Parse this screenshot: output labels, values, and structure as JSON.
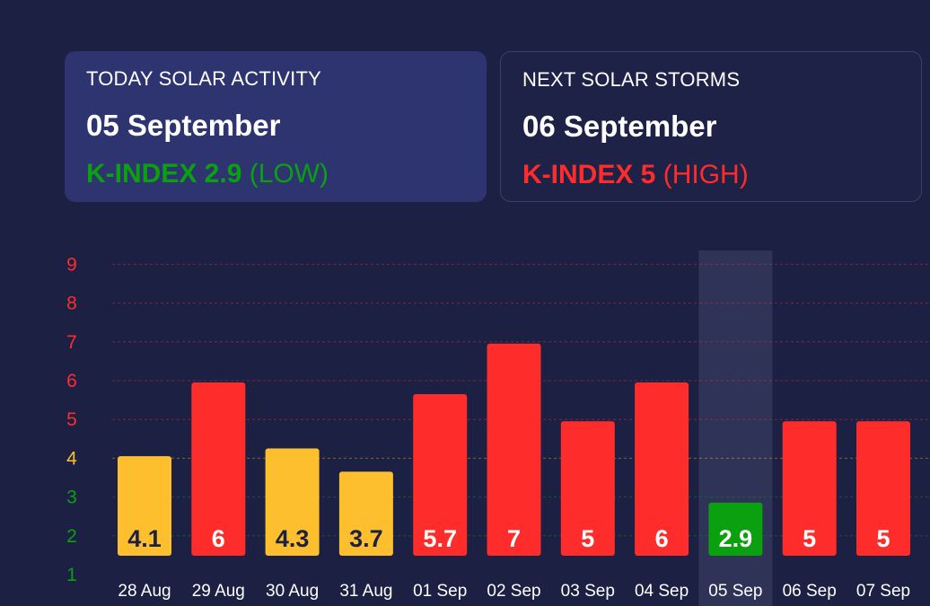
{
  "today": {
    "label": "TODAY SOLAR ACTIVITY",
    "date": "05 September",
    "kindex": "K-INDEX 2.9",
    "level": "(LOW)",
    "color": "#0aa010"
  },
  "next": {
    "label": "NEXT SOLAR STORMS",
    "date": "06 September",
    "kindex": "K-INDEX 5",
    "level": "(HIGH)",
    "color": "#ff2c2c"
  },
  "chart_data": {
    "type": "bar",
    "categories": [
      "28 Aug",
      "29 Aug",
      "30 Aug",
      "31 Aug",
      "01 Sep",
      "02 Sep",
      "03 Sep",
      "04 Sep",
      "05 Sep",
      "06 Sep",
      "07 Sep"
    ],
    "values": [
      4.1,
      6,
      4.3,
      3.7,
      5.7,
      7,
      5,
      6,
      2.9,
      5,
      5
    ],
    "data_labels": [
      "4.1",
      "6",
      "4.3",
      "3.7",
      "5.7",
      "7",
      "5",
      "6",
      "2.9",
      "5",
      "5"
    ],
    "bar_colors": [
      "#fdbf2d",
      "#ff2c2c",
      "#fdbf2d",
      "#fdbf2d",
      "#ff2c2c",
      "#ff2c2c",
      "#ff2c2c",
      "#ff2c2c",
      "#0aa010",
      "#ff2c2c",
      "#ff2c2c"
    ],
    "label_colors": [
      "#1c2042",
      "#ffffff",
      "#1c2042",
      "#1c2042",
      "#ffffff",
      "#ffffff",
      "#ffffff",
      "#ffffff",
      "#ffffff",
      "#ffffff",
      "#ffffff"
    ],
    "highlighted_category": "05 Sep",
    "y_ticks": [
      1,
      2,
      3,
      4,
      5,
      6,
      7,
      8,
      9
    ],
    "y_tick_colors": [
      "#0aa010",
      "#0aa010",
      "#0aa010",
      "#fdbf2d",
      "#ff2c2c",
      "#ff2c2c",
      "#ff2c2c",
      "#ff2c2c",
      "#ff2c2c"
    ],
    "ylim": [
      1,
      9
    ],
    "grid": true,
    "title": "",
    "xlabel": "",
    "ylabel": ""
  }
}
